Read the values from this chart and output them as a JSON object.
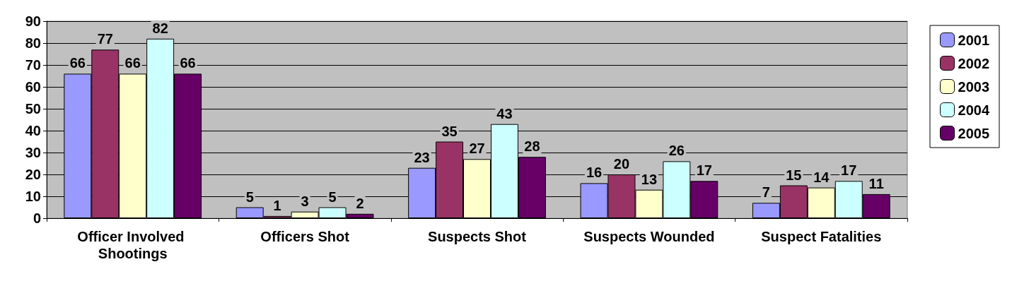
{
  "chart_data": {
    "type": "bar",
    "categories": [
      "Officer Involved Shootings",
      "Officers Shot",
      "Suspects Shot",
      "Suspects Wounded",
      "Suspect Fatalities"
    ],
    "series": [
      {
        "name": "2001",
        "color": "#9999ff",
        "values": [
          66,
          5,
          23,
          16,
          7
        ]
      },
      {
        "name": "2002",
        "color": "#993366",
        "values": [
          77,
          1,
          35,
          20,
          15
        ]
      },
      {
        "name": "2003",
        "color": "#ffffcc",
        "values": [
          66,
          3,
          27,
          13,
          14
        ]
      },
      {
        "name": "2004",
        "color": "#ccffff",
        "values": [
          82,
          5,
          43,
          26,
          17
        ]
      },
      {
        "name": "2005",
        "color": "#660066",
        "values": [
          66,
          2,
          28,
          17,
          11
        ]
      }
    ],
    "ylim": [
      0,
      90
    ],
    "yticks": [
      0,
      10,
      20,
      30,
      40,
      50,
      60,
      70,
      80,
      90
    ],
    "grid": "y",
    "legend": "top right",
    "data_labels": true
  }
}
